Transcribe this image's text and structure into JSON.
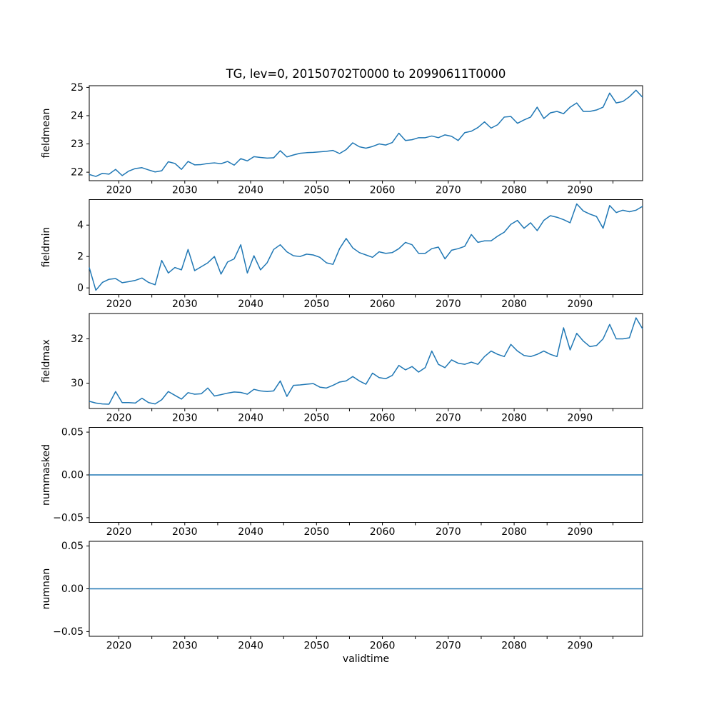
{
  "figure": {
    "title": "TG, lev=0, 20150702T0000 to 20990611T0000",
    "xlabel": "validtime",
    "background": "#ffffff",
    "line_color": "#1f77b4",
    "spine_color": "#000000"
  },
  "x_axis": {
    "label": "validtime",
    "start_year": 2015,
    "end_year": 2099,
    "xlim": [
      2015.5,
      2099.5
    ],
    "minor_tick_step": 5,
    "decade_labels": [
      "2020",
      "2030",
      "2040",
      "2050",
      "2060",
      "2070",
      "2080",
      "2090"
    ]
  },
  "chart_data": [
    {
      "type": "line",
      "name": "fieldmean",
      "ylabel": "fieldmean",
      "ylim": [
        21.7,
        25.06
      ],
      "yticks": [
        {
          "v": 22,
          "label": "22"
        },
        {
          "v": 23,
          "label": "23"
        },
        {
          "v": 24,
          "label": "24"
        },
        {
          "v": 25,
          "label": "25"
        }
      ],
      "color": "#1f77b4",
      "values": [
        21.92,
        21.85,
        21.96,
        21.93,
        22.1,
        21.88,
        22.04,
        22.13,
        22.16,
        22.08,
        22.01,
        22.05,
        22.37,
        22.31,
        22.1,
        22.38,
        22.26,
        22.27,
        22.31,
        22.33,
        22.3,
        22.38,
        22.25,
        22.48,
        22.4,
        22.55,
        22.52,
        22.5,
        22.51,
        22.76,
        22.54,
        22.61,
        22.67,
        22.69,
        22.7,
        22.72,
        22.74,
        22.77,
        22.66,
        22.8,
        23.04,
        22.9,
        22.85,
        22.91,
        23.0,
        22.96,
        23.05,
        23.38,
        23.12,
        23.15,
        23.22,
        23.22,
        23.28,
        23.22,
        23.32,
        23.27,
        23.12,
        23.4,
        23.45,
        23.58,
        23.78,
        23.56,
        23.68,
        23.95,
        23.97,
        23.73,
        23.85,
        23.95,
        24.3,
        23.9,
        24.1,
        24.15,
        24.07,
        24.3,
        24.45,
        24.15,
        24.15,
        24.2,
        24.3,
        24.8,
        24.45,
        24.5,
        24.67,
        24.9,
        24.65
      ]
    },
    {
      "type": "line",
      "name": "fieldmin",
      "ylabel": "fieldmin",
      "ylim": [
        -0.425,
        5.625
      ],
      "yticks": [
        {
          "v": 0,
          "label": "0"
        },
        {
          "v": 2,
          "label": "2"
        },
        {
          "v": 4,
          "label": "4"
        }
      ],
      "color": "#1f77b4",
      "values": [
        1.3,
        -0.15,
        0.35,
        0.55,
        0.6,
        0.33,
        0.4,
        0.48,
        0.63,
        0.35,
        0.2,
        1.75,
        0.95,
        1.3,
        1.15,
        2.45,
        1.1,
        1.35,
        1.6,
        2.0,
        0.88,
        1.65,
        1.85,
        2.75,
        0.95,
        2.05,
        1.15,
        1.6,
        2.45,
        2.75,
        2.3,
        2.05,
        2.0,
        2.15,
        2.1,
        1.95,
        1.6,
        1.5,
        2.5,
        3.15,
        2.55,
        2.25,
        2.1,
        1.95,
        2.3,
        2.2,
        2.25,
        2.5,
        2.9,
        2.75,
        2.2,
        2.2,
        2.5,
        2.6,
        1.85,
        2.4,
        2.5,
        2.65,
        3.4,
        2.9,
        3.0,
        3.0,
        3.3,
        3.55,
        4.05,
        4.3,
        3.8,
        4.15,
        3.65,
        4.3,
        4.6,
        4.5,
        4.35,
        4.15,
        5.35,
        4.9,
        4.7,
        4.55,
        3.8,
        5.25,
        4.8,
        4.95,
        4.85,
        4.95,
        5.2
      ]
    },
    {
      "type": "line",
      "name": "fieldmax",
      "ylabel": "fieldmax",
      "ylim": [
        28.855,
        33.145
      ],
      "yticks": [
        {
          "v": 30,
          "label": "30"
        },
        {
          "v": 32,
          "label": "32"
        }
      ],
      "color": "#1f77b4",
      "values": [
        29.18,
        29.1,
        29.06,
        29.05,
        29.62,
        29.12,
        29.12,
        29.1,
        29.32,
        29.12,
        29.06,
        29.25,
        29.62,
        29.45,
        29.28,
        29.57,
        29.5,
        29.52,
        29.78,
        29.42,
        29.48,
        29.55,
        29.6,
        29.58,
        29.5,
        29.72,
        29.65,
        29.62,
        29.65,
        30.1,
        29.4,
        29.9,
        29.92,
        29.95,
        29.98,
        29.82,
        29.78,
        29.9,
        30.05,
        30.1,
        30.3,
        30.1,
        29.95,
        30.45,
        30.25,
        30.2,
        30.35,
        30.8,
        30.6,
        30.75,
        30.5,
        30.7,
        31.45,
        30.85,
        30.7,
        31.05,
        30.9,
        30.85,
        30.95,
        30.85,
        31.2,
        31.45,
        31.3,
        31.2,
        31.75,
        31.45,
        31.25,
        31.2,
        31.3,
        31.45,
        31.3,
        31.2,
        32.5,
        31.5,
        32.25,
        31.9,
        31.65,
        31.7,
        32.0,
        32.65,
        32.0,
        32.0,
        32.05,
        32.95,
        32.45
      ]
    },
    {
      "type": "line",
      "name": "nummasked",
      "ylabel": "nummasked",
      "ylim": [
        -0.0555,
        0.0555
      ],
      "yticks": [
        {
          "v": -0.05,
          "label": "−0.05"
        },
        {
          "v": 0.0,
          "label": "0.00"
        },
        {
          "v": 0.05,
          "label": "0.05"
        }
      ],
      "color": "#1f77b4",
      "values": 0.0
    },
    {
      "type": "line",
      "name": "numnan",
      "ylabel": "numnan",
      "ylim": [
        -0.0555,
        0.0555
      ],
      "yticks": [
        {
          "v": -0.05,
          "label": "−0.05"
        },
        {
          "v": 0.0,
          "label": "0.00"
        },
        {
          "v": 0.05,
          "label": "0.05"
        }
      ],
      "color": "#1f77b4",
      "values": 0.0
    }
  ]
}
